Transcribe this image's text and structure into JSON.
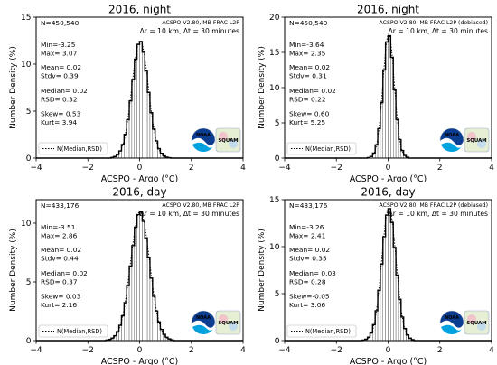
{
  "chart_data": [
    {
      "type": "bar",
      "title": "2016, night",
      "subtitle": "ACSPO V2.80, MB FRAC L2P",
      "criteria": "Δr = 10 km, Δt = 30 minutes",
      "xlabel": "ACSPO - Argo (°C)",
      "ylabel": "Number Density (%)",
      "xlim": [
        -4,
        4
      ],
      "ylim": [
        0,
        15
      ],
      "xticks": [
        "−4",
        "−2",
        "0",
        "2",
        "4"
      ],
      "yticks": [
        "0",
        "5",
        "10",
        "15"
      ],
      "legend": "N(Median,RSD)",
      "legend_position": "bottom-left",
      "logos": [
        "NOAA",
        "SQUAM"
      ],
      "stats": {
        "n": "N=450,540",
        "min": "Min=-3.25",
        "max": "Max= 3.07",
        "mean": "Mean= 0.02",
        "stdv": "Stdv= 0.39",
        "median": "Median= 0.02",
        "rsd": "RSD= 0.32",
        "skew": "Skew= 0.53",
        "kurt": "Kurt= 3.94"
      },
      "params": {
        "median": 0.02,
        "rsd": 0.32,
        "peak": 12.5
      }
    },
    {
      "type": "bar",
      "title": "2016, night",
      "subtitle": "ACSPO V2.80, MB FRAC L2P (debiased)",
      "criteria": "Δr = 10 km, Δt = 30 minutes",
      "xlabel": "ACSPO - Argo (°C)",
      "ylabel": "Number Density (%)",
      "xlim": [
        -4,
        4
      ],
      "ylim": [
        0,
        20
      ],
      "xticks": [
        "−4",
        "−2",
        "0",
        "2",
        "4"
      ],
      "yticks": [
        "0",
        "5",
        "10",
        "15",
        "20"
      ],
      "legend": "N(Median,RSD)",
      "legend_position": "bottom-left",
      "logos": [
        "NOAA",
        "SQUAM"
      ],
      "stats": {
        "n": "N=450,540",
        "min": "Min=-3.64",
        "max": "Max= 2.35",
        "mean": "Mean= 0.02",
        "stdv": "Stdv= 0.31",
        "median": "Median= 0.02",
        "rsd": "RSD= 0.22",
        "skew": "Skew= 0.60",
        "kurt": "Kurt= 5.25"
      },
      "params": {
        "median": 0.02,
        "rsd": 0.22,
        "peak": 17.6
      }
    },
    {
      "type": "bar",
      "title": "2016, day",
      "subtitle": "ACSPO V2.80, MB FRAC L2P",
      "criteria": "Δr = 10 km, Δt = 30 minutes",
      "xlabel": "ACSPO - Argo (°C)",
      "ylabel": "Number Density (%)",
      "xlim": [
        -4,
        4
      ],
      "ylim": [
        0,
        12
      ],
      "xticks": [
        "−4",
        "−2",
        "0",
        "2",
        "4"
      ],
      "yticks": [
        "0",
        "5",
        "10"
      ],
      "legend": "N(Median,RSD)",
      "legend_position": "bottom-left",
      "logos": [
        "NOAA",
        "SQUAM"
      ],
      "stats": {
        "n": "N=433,176",
        "min": "Min=-3.51",
        "max": "Max= 2.86",
        "mean": "Mean= 0.02",
        "stdv": "Stdv= 0.44",
        "median": "Median= 0.02",
        "rsd": "RSD= 0.37",
        "skew": "Skew= 0.03",
        "kurt": "Kurt= 2.16"
      },
      "params": {
        "median": 0.02,
        "rsd": 0.37,
        "peak": 11.0
      }
    },
    {
      "type": "bar",
      "title": "2016, day",
      "subtitle": "ACSPO V2.80, MB FRAC L2P (debiased)",
      "criteria": "Δr = 10 km, Δt = 30 minutes",
      "xlabel": "ACSPO - Argo (°C)",
      "ylabel": "Number Density (%)",
      "xlim": [
        -4,
        4
      ],
      "ylim": [
        0,
        15
      ],
      "xticks": [
        "−4",
        "−2",
        "0",
        "2",
        "4"
      ],
      "yticks": [
        "0",
        "5",
        "10",
        "15"
      ],
      "legend": "N(Median,RSD)",
      "legend_position": "bottom-left",
      "logos": [
        "NOAA",
        "SQUAM"
      ],
      "stats": {
        "n": "N=433,176",
        "min": "Min=-3.26",
        "max": "Max= 2.41",
        "mean": "Mean= 0.02",
        "stdv": "Stdv= 0.35",
        "median": "Median= 0.03",
        "rsd": "RSD= 0.28",
        "skew": "Skew=-0.05",
        "kurt": "Kurt= 3.06"
      },
      "params": {
        "median": 0.03,
        "rsd": 0.28,
        "peak": 14.1
      }
    }
  ]
}
